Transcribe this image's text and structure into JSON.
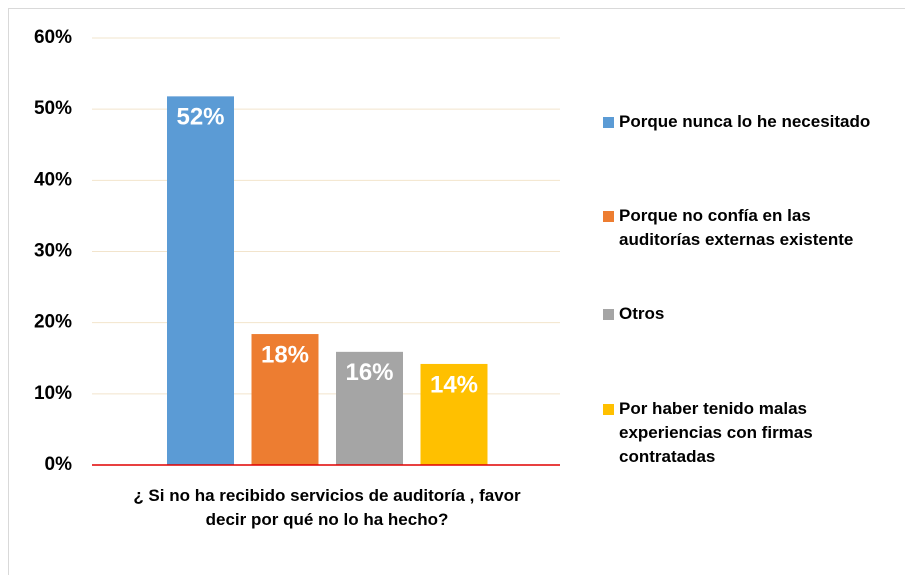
{
  "chart_data": {
    "type": "bar",
    "categories": [
      "¿ Si no ha recibido servicios de auditoría , favor decir por qué no lo ha hecho?"
    ],
    "series": [
      {
        "name": "Porque nunca lo he necesitado",
        "color": "#5b9bd5",
        "values": [
          51.8
        ],
        "value_labels": [
          "52%"
        ]
      },
      {
        "name": "Porque no confía en las auditorías externas existente",
        "color": "#ed7d31",
        "values": [
          18.4
        ],
        "value_labels": [
          "18%"
        ]
      },
      {
        "name": "Otros",
        "color": "#a5a5a5",
        "values": [
          15.9
        ],
        "value_labels": [
          "16%"
        ]
      },
      {
        "name": "Por haber tenido malas experiencias con firmas contratadas",
        "color": "#ffc000",
        "values": [
          14.2
        ],
        "value_labels": [
          "14%"
        ]
      }
    ],
    "ylim": [
      0,
      60
    ],
    "yticks": [
      {
        "value": 0,
        "label": "0%"
      },
      {
        "value": 10,
        "label": "10%"
      },
      {
        "value": 20,
        "label": "20%"
      },
      {
        "value": 30,
        "label": "30%"
      },
      {
        "value": 40,
        "label": "40%"
      },
      {
        "value": 50,
        "label": "50%"
      },
      {
        "value": 60,
        "label": "60%"
      }
    ],
    "grid": true,
    "legend": "right"
  }
}
